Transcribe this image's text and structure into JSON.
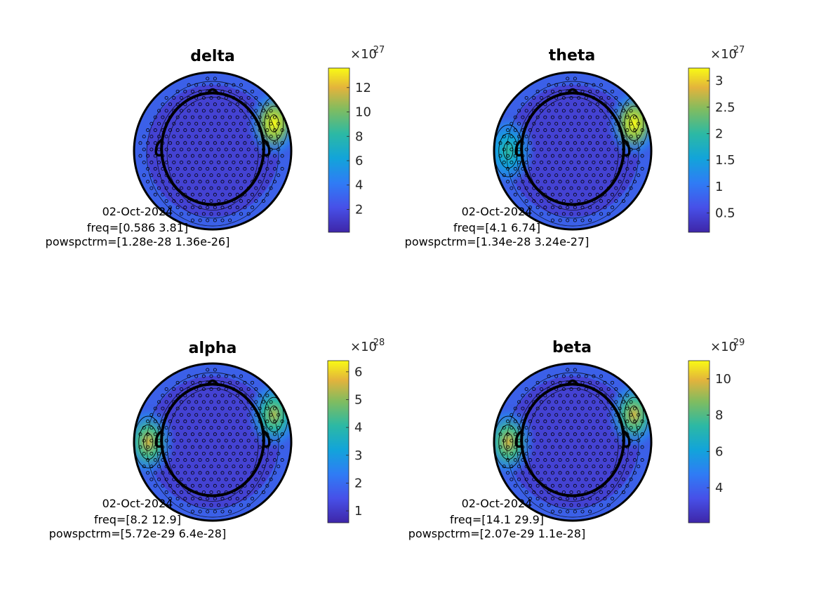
{
  "chart_data": [
    {
      "type": "heatmap",
      "subtype": "eeg-topoplot",
      "title": "delta",
      "annotation": [
        "02-Oct-2024",
        "freq=[0.586 3.81]",
        "powspctrm=[1.28e-28 1.36e-26]"
      ],
      "colorbar": {
        "exponent_base": "×10",
        "exponent": "-27",
        "range": [
          0.128,
          13.6
        ],
        "ticks": [
          2,
          4,
          6,
          8,
          10,
          12
        ],
        "tick_labels": [
          "2",
          "4",
          "6",
          "8",
          "10",
          "12"
        ]
      },
      "hotspots": [
        {
          "region": "right temporal",
          "level": 1.0
        }
      ]
    },
    {
      "type": "heatmap",
      "subtype": "eeg-topoplot",
      "title": "theta",
      "annotation": [
        "02-Oct-2024",
        "freq=[4.1 6.74]",
        "powspctrm=[1.34e-28 3.24e-27]"
      ],
      "colorbar": {
        "exponent_base": "×10",
        "exponent": "-27",
        "range": [
          0.134,
          3.24
        ],
        "ticks": [
          0.5,
          1,
          1.5,
          2,
          2.5,
          3
        ],
        "tick_labels": [
          "0.5",
          "1",
          "1.5",
          "2",
          "2.5",
          "3"
        ]
      },
      "hotspots": [
        {
          "region": "right temporal",
          "level": 1.0
        },
        {
          "region": "left temporal",
          "level": 0.6
        }
      ]
    },
    {
      "type": "heatmap",
      "subtype": "eeg-topoplot",
      "title": "alpha",
      "annotation": [
        "02-Oct-2024",
        "freq=[8.2 12.9]",
        "powspctrm=[5.72e-29 6.4e-28]"
      ],
      "colorbar": {
        "exponent_base": "×10",
        "exponent": "-28",
        "range": [
          0.572,
          6.4
        ],
        "ticks": [
          1,
          2,
          3,
          4,
          5,
          6
        ],
        "tick_labels": [
          "1",
          "2",
          "3",
          "4",
          "5",
          "6"
        ]
      },
      "hotspots": [
        {
          "region": "left temporal",
          "level": 0.85
        },
        {
          "region": "right temporal",
          "level": 0.8
        }
      ]
    },
    {
      "type": "heatmap",
      "subtype": "eeg-topoplot",
      "title": "beta",
      "annotation": [
        "02-Oct-2024",
        "freq=[14.1 29.9]",
        "powspctrm=[2.07e-29 1.1e-28]"
      ],
      "colorbar": {
        "exponent_base": "×10",
        "exponent": "-29",
        "range": [
          2.07,
          11.0
        ],
        "ticks": [
          4,
          6,
          8,
          10
        ],
        "tick_labels": [
          "4",
          "6",
          "8",
          "10"
        ]
      },
      "hotspots": [
        {
          "region": "left temporal",
          "level": 0.85
        },
        {
          "region": "right temporal",
          "level": 0.85
        }
      ]
    }
  ],
  "colormap": "parula"
}
